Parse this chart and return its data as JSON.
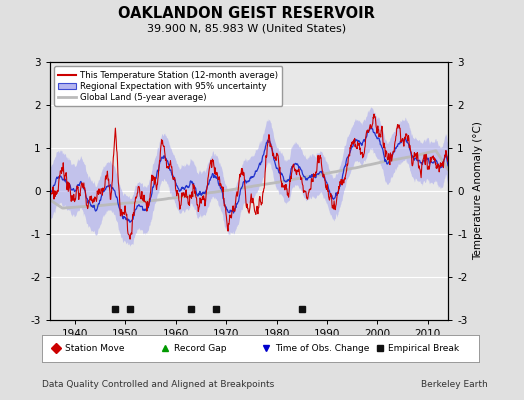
{
  "title": "OAKLANDON GEIST RESERVOIR",
  "subtitle": "39.900 N, 85.983 W (United States)",
  "ylabel": "Temperature Anomaly (°C)",
  "xlabel_bottom": "Data Quality Controlled and Aligned at Breakpoints",
  "xlabel_right": "Berkeley Earth",
  "year_start": 1935,
  "year_end": 2014,
  "ylim": [
    -3,
    3
  ],
  "yticks": [
    -3,
    -2,
    -1,
    0,
    1,
    2,
    3
  ],
  "xticks": [
    1940,
    1950,
    1960,
    1970,
    1980,
    1990,
    2000,
    2010
  ],
  "bg_color": "#e0e0e0",
  "plot_bg_color": "#e8e8e8",
  "grid_color": "#ffffff",
  "uncertainty_color": "#aaaaee",
  "uncertainty_alpha": 0.6,
  "regional_line_color": "#2233cc",
  "station_line_color": "#cc0000",
  "global_land_color": "#bbbbbb",
  "legend_box_color": "white",
  "marker_items": [
    {
      "label": "Station Move",
      "color": "#cc0000",
      "marker": "D"
    },
    {
      "label": "Record Gap",
      "color": "#009900",
      "marker": "^"
    },
    {
      "label": "Time of Obs. Change",
      "color": "#0000cc",
      "marker": "v"
    },
    {
      "label": "Empirical Break",
      "color": "#111111",
      "marker": "s"
    }
  ],
  "empirical_breaks": [
    1948,
    1951,
    1963,
    1968,
    1985
  ],
  "seed": 77
}
